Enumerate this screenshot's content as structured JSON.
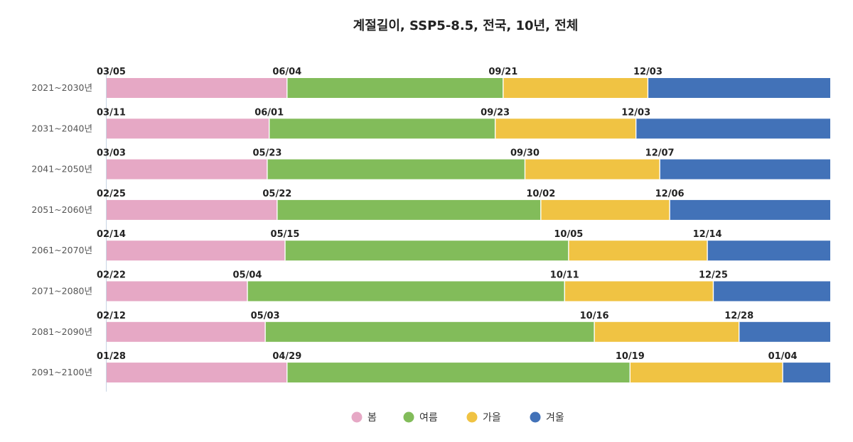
{
  "chart_data": {
    "type": "bar",
    "orientation": "horizontal",
    "stacked": true,
    "title": "계절길이, SSP5-8.5, 전국, 10년, 전체",
    "categories": [
      "2021~2030년",
      "2031~2040년",
      "2041~2050년",
      "2051~2060년",
      "2061~2070년",
      "2071~2080년",
      "2081~2090년",
      "2091~2100년"
    ],
    "series": [
      {
        "name": "봄",
        "color": "#e6a8c5",
        "values": [
          91,
          82,
          81,
          86,
          90,
          71,
          80,
          91
        ],
        "start_labels": [
          "03/05",
          "03/11",
          "03/03",
          "02/25",
          "02/14",
          "02/22",
          "02/12",
          "01/28"
        ]
      },
      {
        "name": "여름",
        "color": "#82bc5a",
        "values": [
          109,
          114,
          130,
          133,
          143,
          160,
          166,
          173
        ],
        "start_labels": [
          "06/04",
          "06/01",
          "05/23",
          "05/22",
          "05/15",
          "05/04",
          "05/03",
          "04/29"
        ]
      },
      {
        "name": "가을",
        "color": "#f0c343",
        "values": [
          73,
          71,
          68,
          65,
          70,
          75,
          73,
          77
        ],
        "start_labels": [
          "09/21",
          "09/23",
          "09/30",
          "10/02",
          "10/05",
          "10/11",
          "10/16",
          "10/19"
        ]
      },
      {
        "name": "겨울",
        "color": "#4272b8",
        "values": [
          92,
          98,
          86,
          81,
          62,
          59,
          46,
          13
        ],
        "start_labels": [
          "12/03",
          "12/03",
          "12/07",
          "12/06",
          "12/14",
          "12/25",
          "12/28",
          "01/04"
        ]
      }
    ],
    "legend_position": "bottom",
    "grid": false,
    "xlim": [
      0,
      365
    ]
  }
}
